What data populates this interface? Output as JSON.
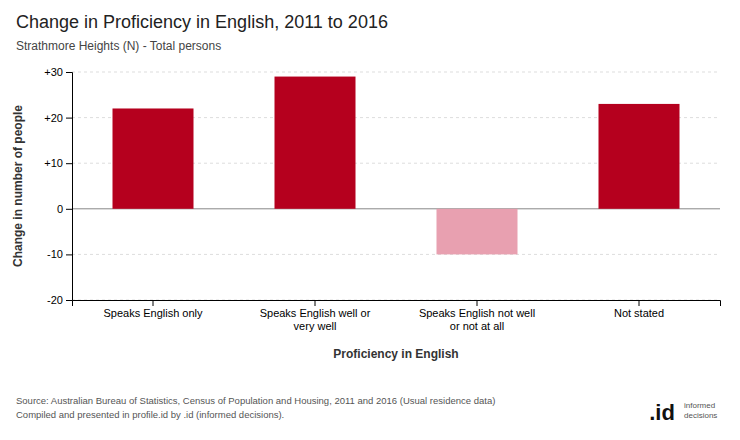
{
  "chart_data": {
    "type": "bar",
    "title": "Change in Proficiency in English, 2011 to 2016",
    "subtitle": "Strathmore Heights (N) - Total persons",
    "categories": [
      "Speaks English only",
      "Speaks English well or\nvery well",
      "Speaks English not well\nor not at all",
      "Not stated"
    ],
    "values": [
      22,
      29,
      -10,
      23
    ],
    "colors": [
      "#b5001e",
      "#b5001e",
      "#e8a0b0",
      "#b5001e"
    ],
    "xlabel": "Proficiency in English",
    "ylabel": "Change in number of people",
    "ylim": [
      -20,
      30
    ],
    "yticks": [
      -20,
      -10,
      0,
      {
        "value": 10,
        "label": "+10"
      },
      {
        "value": 20,
        "label": "+20"
      },
      {
        "value": 30,
        "label": "+30"
      }
    ],
    "grid": true,
    "annotations": [
      "Source: Australian Bureau of Statistics, Census of Population and Housing, 2011 and 2016 (Usual residence data)",
      "Compiled and presented in profile.id by .id (informed decisions).",
      ".id",
      "informed\ndecisions"
    ]
  }
}
